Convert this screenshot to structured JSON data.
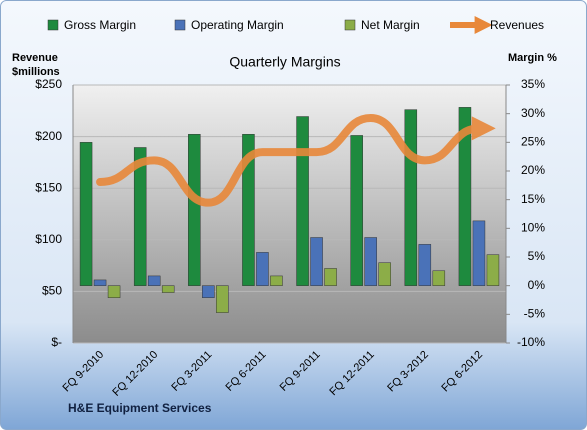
{
  "chart_data": {
    "type": "bar",
    "title": "Quarterly Margins",
    "ylabel": "Revenue\n$millions",
    "y2label": "Margin %",
    "footer": "H&E Equipment Services",
    "categories": [
      "FQ 9-2010",
      "FQ 12-2010",
      "FQ 3-2011",
      "FQ 6-2011",
      "FQ 9-2011",
      "FQ 12-2011",
      "FQ 3-2012",
      "FQ 6-2012"
    ],
    "series": [
      {
        "name": "Gross Margin",
        "color": "#1e8a3e",
        "axis": "y2",
        "values": [
          25.0,
          24.1,
          26.4,
          26.4,
          29.5,
          26.2,
          30.7,
          31.1
        ]
      },
      {
        "name": "Operating Margin",
        "color": "#4a72b8",
        "axis": "y2",
        "values": [
          1.0,
          1.7,
          -2.1,
          5.8,
          8.4,
          8.4,
          7.2,
          11.3
        ]
      },
      {
        "name": "Net Margin",
        "color": "#8cad48",
        "axis": "y2",
        "values": [
          -2.1,
          -1.2,
          -4.7,
          1.7,
          3.0,
          4.0,
          2.6,
          5.4
        ]
      },
      {
        "name": "Revenues",
        "color": "#e8883a",
        "type": "line",
        "values": [
          156,
          177,
          136,
          185,
          185,
          218,
          177,
          208
        ]
      }
    ],
    "ylim": [
      0,
      250
    ],
    "yticks": [
      {
        "value": 0,
        "label": "$-"
      },
      {
        "value": 50,
        "label": "$50"
      },
      {
        "value": 100,
        "label": "$100"
      },
      {
        "value": 150,
        "label": "$150"
      },
      {
        "value": 200,
        "label": "$200"
      },
      {
        "value": 250,
        "label": "$250"
      }
    ],
    "y2lim": [
      -10,
      35
    ],
    "y2ticks": [
      {
        "value": -10,
        "label": "-10%"
      },
      {
        "value": -5,
        "label": "-5%"
      },
      {
        "value": 0,
        "label": "0%"
      },
      {
        "value": 5,
        "label": "5%"
      },
      {
        "value": 10,
        "label": "10%"
      },
      {
        "value": 15,
        "label": "15%"
      },
      {
        "value": 20,
        "label": "20%"
      },
      {
        "value": 25,
        "label": "25%"
      },
      {
        "value": 30,
        "label": "30%"
      },
      {
        "value": 35,
        "label": "35%"
      }
    ],
    "grid": true
  }
}
